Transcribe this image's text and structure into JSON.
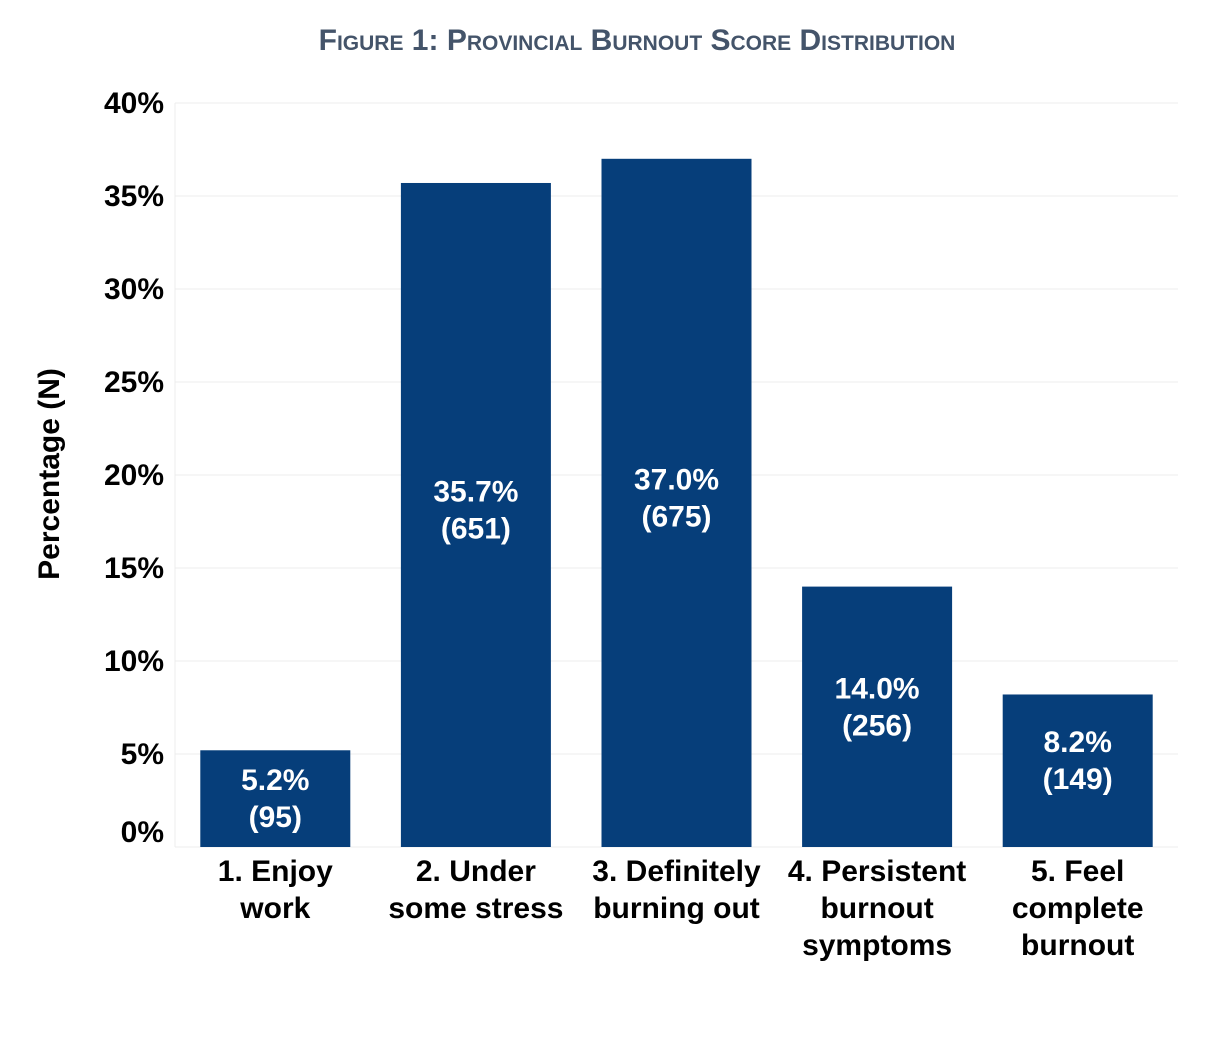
{
  "figure_title": "Figure 1: Provincial Burnout Score Distribution",
  "colors": {
    "bar": "#063e7a",
    "grid": "#ececec",
    "title": "#44546a",
    "bar_label": "#ffffff"
  },
  "chart_data": {
    "type": "bar",
    "title": "Figure 1: Provincial Burnout Score Distribution",
    "xlabel": "",
    "ylabel": "Percentage (N)",
    "ylim": [
      0,
      40
    ],
    "yticks": [
      0,
      5,
      10,
      15,
      20,
      25,
      30,
      35,
      40
    ],
    "ytick_labels": [
      "0%",
      "5%",
      "10%",
      "15%",
      "20%",
      "25%",
      "30%",
      "35%",
      "40%"
    ],
    "grid": true,
    "categories": [
      [
        "1. Enjoy",
        "work"
      ],
      [
        "2. Under",
        "some stress"
      ],
      [
        "3. Definitely",
        "burning out"
      ],
      [
        "4. Persistent",
        "burnout",
        "symptoms"
      ],
      [
        "5. Feel",
        "complete",
        "burnout"
      ]
    ],
    "values": [
      5.2,
      35.7,
      37.0,
      14.0,
      8.2
    ],
    "data_labels": [
      [
        "5.2%",
        "(95)"
      ],
      [
        "35.7%",
        "(651)"
      ],
      [
        "37.0%",
        "(675)"
      ],
      [
        "14.0%",
        "(256)"
      ],
      [
        "8.2%",
        "(149)"
      ]
    ]
  }
}
